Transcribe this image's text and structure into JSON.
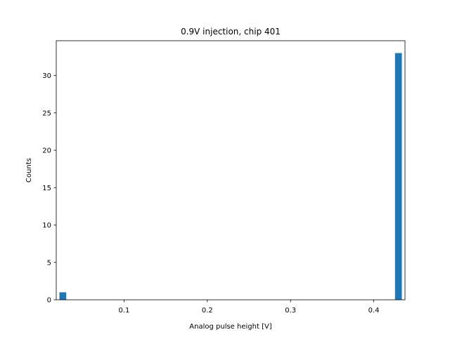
{
  "chart_data": {
    "type": "bar",
    "title": "0.9V injection, chip 401",
    "xlabel": "Analog pulse height [V]",
    "ylabel": "Counts",
    "xlim": [
      0.0185,
      0.4375
    ],
    "ylim": [
      0,
      34.65
    ],
    "xticks": [
      0.1,
      0.2,
      0.3,
      0.4
    ],
    "xtick_labels": [
      "0.1",
      "0.2",
      "0.3",
      "0.4"
    ],
    "yticks": [
      0,
      5,
      10,
      15,
      20,
      25,
      30
    ],
    "ytick_labels": [
      "0",
      "5",
      "10",
      "15",
      "20",
      "25",
      "30"
    ],
    "bar_color": "#1f77b4",
    "grid": false,
    "bins": [
      {
        "x0": 0.0223,
        "x1": 0.0305,
        "count": 1
      },
      {
        "x0": 0.4255,
        "x1": 0.4337,
        "count": 33
      }
    ]
  }
}
